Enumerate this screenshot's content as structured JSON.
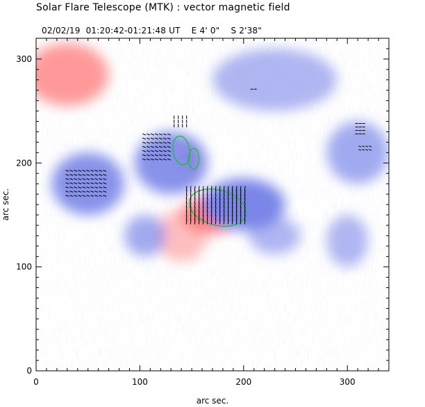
{
  "header": {
    "title": "Solar Flare Telescope (MTK) : vector magnetic field",
    "date": "02/02/19",
    "time": "01:20:42-01:21:48 UT",
    "position_ew": "E 4' 0\"",
    "position_ns": "S 2'38\""
  },
  "chart_data": {
    "type": "heatmap",
    "xlabel": "arc sec.",
    "ylabel": "arc sec.",
    "xlim": [
      0,
      340
    ],
    "ylim": [
      0,
      320
    ],
    "xticks": [
      0,
      100,
      200,
      300
    ],
    "yticks": [
      0,
      100,
      200,
      300
    ],
    "colors": {
      "positive": "#ff8080",
      "negative": "#7a86e8",
      "contour": "#22bb44",
      "vector": "#000000"
    },
    "regions": [
      {
        "polarity": "positive",
        "x": 30,
        "y": 285,
        "rx": 40,
        "ry": 30,
        "strength": 0.8
      },
      {
        "polarity": "positive",
        "x": 170,
        "y": 150,
        "rx": 30,
        "ry": 18,
        "strength": 1.0
      },
      {
        "polarity": "positive",
        "x": 140,
        "y": 130,
        "rx": 25,
        "ry": 25,
        "strength": 0.5
      },
      {
        "polarity": "positive",
        "x": 150,
        "y": 205,
        "rx": 10,
        "ry": 15,
        "strength": 0.8
      },
      {
        "polarity": "negative",
        "x": 130,
        "y": 200,
        "rx": 35,
        "ry": 30,
        "strength": 0.9
      },
      {
        "polarity": "negative",
        "x": 50,
        "y": 180,
        "rx": 35,
        "ry": 30,
        "strength": 0.9
      },
      {
        "polarity": "negative",
        "x": 200,
        "y": 160,
        "rx": 40,
        "ry": 25,
        "strength": 1.0
      },
      {
        "polarity": "negative",
        "x": 230,
        "y": 280,
        "rx": 60,
        "ry": 30,
        "strength": 0.6
      },
      {
        "polarity": "negative",
        "x": 310,
        "y": 210,
        "rx": 30,
        "ry": 30,
        "strength": 0.7
      },
      {
        "polarity": "negative",
        "x": 105,
        "y": 130,
        "rx": 20,
        "ry": 20,
        "strength": 0.7
      },
      {
        "polarity": "negative",
        "x": 230,
        "y": 130,
        "rx": 25,
        "ry": 18,
        "strength": 0.6
      },
      {
        "polarity": "negative",
        "x": 300,
        "y": 125,
        "rx": 20,
        "ry": 25,
        "strength": 0.6
      }
    ],
    "contours": [
      {
        "x": 175,
        "y": 157,
        "rx": 28,
        "ry": 17,
        "rotate": 15
      },
      {
        "x": 140,
        "y": 212,
        "rx": 8,
        "ry": 14,
        "rotate": -10
      },
      {
        "x": 152,
        "y": 204,
        "rx": 5,
        "ry": 10,
        "rotate": 0
      }
    ],
    "vector_clusters": [
      {
        "x": 175,
        "y": 158,
        "w": 60,
        "h": 35,
        "angle": 95,
        "len": 7,
        "spacing": 6
      },
      {
        "x": 50,
        "y": 180,
        "w": 40,
        "h": 25,
        "angle": 20,
        "len": 5,
        "spacing": 6
      },
      {
        "x": 118,
        "y": 215,
        "w": 28,
        "h": 25,
        "angle": 20,
        "len": 5,
        "spacing": 6
      },
      {
        "x": 140,
        "y": 240,
        "w": 14,
        "h": 8,
        "angle": 90,
        "len": 5,
        "spacing": 6
      },
      {
        "x": 313,
        "y": 233,
        "w": 8,
        "h": 10,
        "angle": 0,
        "len": 4,
        "spacing": 5
      },
      {
        "x": 317,
        "y": 214,
        "w": 10,
        "h": 4,
        "angle": 20,
        "len": 4,
        "spacing": 5
      },
      {
        "x": 210,
        "y": 270,
        "w": 4,
        "h": 2,
        "angle": 0,
        "len": 4,
        "spacing": 5
      }
    ]
  }
}
